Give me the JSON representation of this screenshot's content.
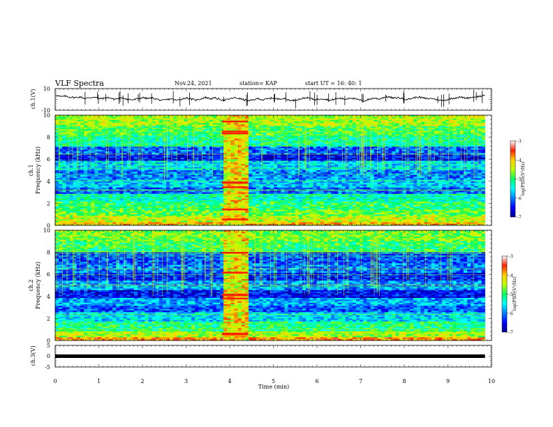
{
  "header": {
    "title": "VLF Spectra",
    "date": "Nov.24, 2021",
    "station": "station= KAP",
    "start": "start  UT  =   16: 40: 1"
  },
  "chart_data": [
    {
      "type": "line",
      "panel": "waveform-ch1",
      "ylabel": "ch.1(V)",
      "ylim": [
        -10,
        10
      ],
      "yticks": [
        "10",
        "-10"
      ],
      "xlim": [
        0,
        10
      ],
      "x_end_data": 9.85,
      "series": [
        {
          "values": [
            4.1,
            2.5,
            3.0,
            2.1,
            1.7,
            2.3,
            0.9,
            1.5,
            2.4,
            0.6,
            1.1,
            1.8,
            0.2,
            0.9,
            1.3,
            0.1,
            -0.4,
            0.6,
            1.7,
            0.8,
            1.3,
            0.2,
            -1.1,
            -0.2,
            0.7,
            -0.9,
            0.3,
            1.5,
            0.4,
            -0.6,
            0.5,
            1.9,
            0.7,
            1.3,
            0.1,
            -0.7,
            0.4,
            1.6,
            0.9,
            -0.2,
            -1.5,
            -0.3,
            0.9,
            -0.5,
            0.6,
            1.4,
            0.2,
            1.1,
            -0.1,
            -1.2,
            -0.1,
            0.8,
            1.7,
            0.6,
            -0.3,
            0.9,
            0.1,
            -0.8,
            0.6,
            1.1,
            0.1,
            1.6,
            0.5,
            -0.6,
            -1.4,
            0.2,
            1.3,
            0.4,
            1.9,
            2.4,
            1.1,
            1.7,
            0.6,
            0.1,
            1.2,
            2.3,
            1.5,
            0.6,
            1.0,
            -0.2,
            -1.1,
            -0.3,
            0.8,
            1.6,
            2.1,
            1.2,
            1.8,
            2.5,
            2.9,
            3.4
          ]
        }
      ]
    },
    {
      "type": "heatmap",
      "panel": "spectrogram-ch1",
      "ylabel": "ch.1\nFrequency  (kHz)",
      "ylim": [
        0,
        10
      ],
      "yticks": [
        "0",
        "2",
        "4",
        "6",
        "8",
        "10"
      ],
      "xlim": [
        0,
        10
      ],
      "x_end_data": 9.85,
      "colorbar": {
        "label": "log(PSD)(V²/Hz)",
        "ticks": [
          "-3",
          "-4",
          "-5",
          "-6",
          "-7"
        ],
        "range": [
          -7,
          -3
        ]
      },
      "event_interval_min": [
        3.82,
        4.42
      ],
      "frequency_bands": [
        {
          "f": [
            0.0,
            0.3
          ],
          "level": -3.9
        },
        {
          "f": [
            0.3,
            0.8
          ],
          "level": -4.4
        },
        {
          "f": [
            0.8,
            1.5
          ],
          "level": -4.8
        },
        {
          "f": [
            1.5,
            2.2
          ],
          "level": -5.0
        },
        {
          "f": [
            2.2,
            2.8
          ],
          "level": -5.3
        },
        {
          "f": [
            2.8,
            3.4
          ],
          "level": -6.1
        },
        {
          "f": [
            3.4,
            4.2
          ],
          "level": -5.7
        },
        {
          "f": [
            4.2,
            5.0
          ],
          "level": -6.0
        },
        {
          "f": [
            5.0,
            5.8
          ],
          "level": -5.6
        },
        {
          "f": [
            5.8,
            6.5
          ],
          "level": -6.5
        },
        {
          "f": [
            6.5,
            7.2
          ],
          "level": -6.1
        },
        {
          "f": [
            7.2,
            8.2
          ],
          "level": -5.2
        },
        {
          "f": [
            8.2,
            9.0
          ],
          "level": -4.9
        },
        {
          "f": [
            9.0,
            10.0
          ],
          "level": -4.5
        }
      ]
    },
    {
      "type": "heatmap",
      "panel": "spectrogram-ch2",
      "ylabel": "ch.2\nFrequency  (kHz)",
      "ylim": [
        0,
        10
      ],
      "yticks": [
        "0",
        "2",
        "4",
        "6",
        "8",
        "10"
      ],
      "xlim": [
        0,
        10
      ],
      "x_end_data": 9.85,
      "colorbar": {
        "label": "log(PSD)(V²/Hz)",
        "ticks": [
          "-3",
          "-4",
          "-5",
          "-6",
          "-7"
        ],
        "range": [
          -7,
          -3
        ]
      },
      "event_interval_min": [
        3.82,
        4.42
      ],
      "frequency_bands": [
        {
          "f": [
            0.0,
            0.3
          ],
          "level": -3.8
        },
        {
          "f": [
            0.3,
            0.9
          ],
          "level": -4.5
        },
        {
          "f": [
            0.9,
            1.7
          ],
          "level": -5.1
        },
        {
          "f": [
            1.7,
            2.6
          ],
          "level": -5.6
        },
        {
          "f": [
            2.6,
            3.2
          ],
          "level": -6.2
        },
        {
          "f": [
            3.2,
            3.8
          ],
          "level": -5.8
        },
        {
          "f": [
            3.8,
            4.6
          ],
          "level": -6.5
        },
        {
          "f": [
            4.6,
            5.4
          ],
          "level": -5.9
        },
        {
          "f": [
            5.4,
            6.2
          ],
          "level": -6.4
        },
        {
          "f": [
            6.2,
            7.0
          ],
          "level": -6.0
        },
        {
          "f": [
            7.0,
            8.0
          ],
          "level": -6.2
        },
        {
          "f": [
            8.0,
            9.0
          ],
          "level": -5.0
        },
        {
          "f": [
            9.0,
            10.0
          ],
          "level": -4.7
        }
      ]
    },
    {
      "type": "line",
      "panel": "waveform-ch3",
      "ylabel": "ch.3(V)",
      "ylim": [
        -5,
        5
      ],
      "yticks": [
        "5",
        "0",
        "-5"
      ],
      "xlabel": "Time  (min)",
      "xlim": [
        0,
        10
      ],
      "xticks": [
        "0",
        "1",
        "2",
        "3",
        "4",
        "5",
        "6",
        "7",
        "8",
        "9",
        "10"
      ],
      "x_end_data": 9.85,
      "series": [
        {
          "values": [
            0,
            0
          ],
          "note_free": true
        }
      ]
    }
  ]
}
